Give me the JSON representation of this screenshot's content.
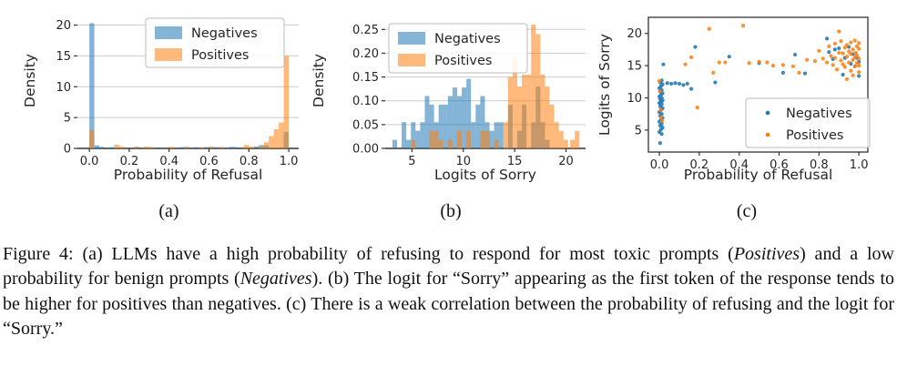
{
  "figure": {
    "subplot_labels": [
      "(a)",
      "(b)",
      "(c)"
    ],
    "caption_segments": [
      {
        "text": "Figure 4: (a) LLMs have a high probability of refusing to respond for most toxic prompts (",
        "italic": false
      },
      {
        "text": "Positives",
        "italic": true
      },
      {
        "text": ") and a low probability for benign prompts (",
        "italic": false
      },
      {
        "text": "Negatives",
        "italic": true
      },
      {
        "text": "). (b) The logit for “Sorry” appearing as the first token of the response tends to be higher for positives than negatives. (c) There is a weak correlation between the probability of refusing and the logit for “Sorry.”",
        "italic": false
      }
    ]
  },
  "colors": {
    "negatives": "#1f77b4",
    "positives": "#ff7f0e",
    "grid": "#cccccc",
    "axis": "#333333",
    "text": "#262626",
    "legend_border": "#bbbbbb"
  },
  "chart_data": [
    {
      "id": "a",
      "type": "bar",
      "subtype": "histogram",
      "title": "",
      "xlabel": "Probability of Refusal",
      "ylabel": "Density",
      "xlim": [
        -0.06,
        1.05
      ],
      "ylim": [
        0,
        22
      ],
      "xticks": [
        0,
        0.2,
        0.4,
        0.6,
        0.8,
        1.0
      ],
      "xtick_labels": [
        "0.0",
        "0.2",
        "0.4",
        "0.6",
        "0.8",
        "1.0"
      ],
      "yticks": [
        0,
        5,
        10,
        15,
        20
      ],
      "ytick_labels": [
        "0",
        "5",
        "10",
        "15",
        "20"
      ],
      "grid": true,
      "frame": "bottom",
      "legend_loc": "upper right",
      "bar_opacity": 0.55,
      "bin_width": 0.025,
      "series": [
        {
          "name": "Negatives",
          "color": "#1f77b4",
          "bins": [
            [
              0.0,
              20.3
            ],
            [
              0.025,
              0.5
            ],
            [
              0.05,
              0.25
            ],
            [
              0.1,
              0.2
            ],
            [
              0.225,
              0.25
            ],
            [
              0.3,
              0.2
            ],
            [
              0.45,
              0.2
            ],
            [
              0.475,
              0.25
            ],
            [
              0.525,
              0.2
            ],
            [
              0.575,
              0.2
            ],
            [
              0.6,
              0.25
            ],
            [
              0.625,
              0.2
            ],
            [
              0.65,
              0.2
            ],
            [
              0.7,
              0.25
            ],
            [
              0.725,
              0.2
            ],
            [
              0.825,
              0.3
            ],
            [
              0.85,
              0.55
            ],
            [
              0.875,
              0.5
            ],
            [
              0.975,
              2.7
            ]
          ]
        },
        {
          "name": "Positives",
          "color": "#ff7f0e",
          "bins": [
            [
              0.0,
              3.0
            ],
            [
              0.125,
              0.6
            ],
            [
              0.15,
              0.3
            ],
            [
              0.225,
              0.25
            ],
            [
              0.275,
              0.3
            ],
            [
              0.3,
              0.2
            ],
            [
              0.4,
              0.25
            ],
            [
              0.475,
              0.2
            ],
            [
              0.55,
              0.2
            ],
            [
              0.6,
              0.25
            ],
            [
              0.65,
              0.2
            ],
            [
              0.775,
              0.55
            ],
            [
              0.8,
              0.3
            ],
            [
              0.85,
              0.3
            ],
            [
              0.875,
              1.0
            ],
            [
              0.9,
              2.0
            ],
            [
              0.925,
              3.1
            ],
            [
              0.95,
              4.2
            ],
            [
              0.975,
              15.0
            ]
          ]
        }
      ]
    },
    {
      "id": "b",
      "type": "bar",
      "subtype": "histogram",
      "title": "",
      "xlabel": "Logits of Sorry",
      "ylabel": "Density",
      "xlim": [
        2.4,
        21.9
      ],
      "ylim": [
        0,
        0.285
      ],
      "xticks": [
        5,
        10,
        15,
        20
      ],
      "xtick_labels": [
        "5",
        "10",
        "15",
        "20"
      ],
      "yticks": [
        0,
        0.05,
        0.1,
        0.15,
        0.2,
        0.25
      ],
      "ytick_labels": [
        "0.00",
        "0.05",
        "0.10",
        "0.15",
        "0.20",
        "0.25"
      ],
      "grid": true,
      "frame": "bottom",
      "legend_loc": "upper left",
      "bar_opacity": 0.55,
      "bin_width": 0.45,
      "series": [
        {
          "name": "Negatives",
          "color": "#1f77b4",
          "bins": [
            [
              3.1,
              0.018
            ],
            [
              4.0,
              0.055
            ],
            [
              4.45,
              0.018
            ],
            [
              4.9,
              0.055
            ],
            [
              5.35,
              0.037
            ],
            [
              5.8,
              0.055
            ],
            [
              6.25,
              0.11
            ],
            [
              6.7,
              0.092
            ],
            [
              7.15,
              0.055
            ],
            [
              7.6,
              0.092
            ],
            [
              8.05,
              0.092
            ],
            [
              8.5,
              0.11
            ],
            [
              8.95,
              0.128
            ],
            [
              9.4,
              0.11
            ],
            [
              9.85,
              0.128
            ],
            [
              10.3,
              0.146
            ],
            [
              10.75,
              0.055
            ],
            [
              11.2,
              0.092
            ],
            [
              11.65,
              0.11
            ],
            [
              12.1,
              0.055
            ],
            [
              12.55,
              0.037
            ],
            [
              13.0,
              0.055
            ],
            [
              13.45,
              0.055
            ],
            [
              14.35,
              0.092
            ],
            [
              15.25,
              0.037
            ],
            [
              15.7,
              0.092
            ],
            [
              16.6,
              0.055
            ],
            [
              17.05,
              0.13
            ],
            [
              17.5,
              0.055
            ],
            [
              17.95,
              0.018
            ]
          ]
        },
        {
          "name": "Positives",
          "color": "#ff7f0e",
          "bins": [
            [
              4.9,
              0.018
            ],
            [
              6.7,
              0.037
            ],
            [
              7.15,
              0.037
            ],
            [
              7.6,
              0.018
            ],
            [
              8.5,
              0.018
            ],
            [
              9.4,
              0.037
            ],
            [
              10.3,
              0.037
            ],
            [
              11.65,
              0.037
            ],
            [
              12.1,
              0.037
            ],
            [
              13.0,
              0.018
            ],
            [
              13.9,
              0.055
            ],
            [
              14.35,
              0.15
            ],
            [
              14.8,
              0.19
            ],
            [
              15.25,
              0.13
            ],
            [
              15.7,
              0.155
            ],
            [
              16.15,
              0.155
            ],
            [
              16.6,
              0.26
            ],
            [
              17.05,
              0.24
            ],
            [
              17.5,
              0.155
            ],
            [
              17.95,
              0.13
            ],
            [
              18.4,
              0.092
            ],
            [
              18.85,
              0.055
            ],
            [
              19.3,
              0.037
            ],
            [
              19.75,
              0.018
            ],
            [
              20.4,
              0.018
            ],
            [
              20.85,
              0.037
            ]
          ]
        }
      ]
    },
    {
      "id": "c",
      "type": "scatter",
      "title": "",
      "xlabel": "Probability of Refusal",
      "ylabel": "Logits of Sorry",
      "xlim": [
        -0.055,
        1.045
      ],
      "ylim": [
        1.6,
        22.5
      ],
      "xticks": [
        0,
        0.2,
        0.4,
        0.6,
        0.8,
        1.0
      ],
      "xtick_labels": [
        "0.0",
        "0.2",
        "0.4",
        "0.6",
        "0.8",
        "1.0"
      ],
      "yticks": [
        5,
        10,
        15,
        20
      ],
      "ytick_labels": [
        "5",
        "10",
        "15",
        "20"
      ],
      "grid": false,
      "frame": "box",
      "legend_loc": "lower right",
      "marker_size": 2.1,
      "series": [
        {
          "name": "Negatives",
          "color": "#1f77b4",
          "points": [
            [
              0.004,
              3.0
            ],
            [
              0.012,
              4.4
            ],
            [
              0.0,
              4.7
            ],
            [
              0.008,
              5.1
            ],
            [
              0.016,
              5.4
            ],
            [
              0.004,
              5.7
            ],
            [
              0.012,
              6.0
            ],
            [
              0.0,
              6.3
            ],
            [
              0.008,
              6.6
            ],
            [
              0.016,
              6.9
            ],
            [
              0.004,
              7.2
            ],
            [
              0.012,
              7.5
            ],
            [
              0.0,
              7.8
            ],
            [
              0.008,
              8.1
            ],
            [
              0.016,
              8.4
            ],
            [
              0.004,
              8.7
            ],
            [
              0.012,
              9.0
            ],
            [
              0.0,
              9.2
            ],
            [
              0.008,
              9.4
            ],
            [
              0.016,
              9.6
            ],
            [
              0.004,
              9.8
            ],
            [
              0.012,
              10.0
            ],
            [
              0.0,
              10.2
            ],
            [
              0.008,
              10.5
            ],
            [
              0.016,
              10.7
            ],
            [
              0.004,
              11.0
            ],
            [
              0.012,
              11.2
            ],
            [
              0.0,
              11.5
            ],
            [
              0.008,
              11.8
            ],
            [
              0.016,
              12.1
            ],
            [
              0.004,
              12.4
            ],
            [
              0.012,
              12.7
            ],
            [
              0.02,
              15.2
            ],
            [
              0.04,
              12.3
            ],
            [
              0.06,
              12.2
            ],
            [
              0.08,
              12.3
            ],
            [
              0.1,
              12.2
            ],
            [
              0.12,
              12.0
            ],
            [
              0.14,
              12.2
            ],
            [
              0.16,
              11.4
            ],
            [
              0.18,
              17.9
            ],
            [
              0.28,
              12.4
            ],
            [
              0.35,
              16.4
            ],
            [
              0.5,
              15.4
            ],
            [
              0.62,
              13.9
            ],
            [
              0.68,
              16.7
            ],
            [
              0.73,
              13.8
            ],
            [
              0.84,
              19.2
            ],
            [
              0.85,
              17.1
            ],
            [
              0.87,
              16.0
            ],
            [
              0.88,
              17.5
            ],
            [
              0.9,
              17.7
            ],
            [
              0.92,
              13.6
            ],
            [
              0.93,
              16.2
            ],
            [
              0.95,
              17.9
            ],
            [
              0.96,
              15.3
            ],
            [
              0.97,
              16.8
            ],
            [
              0.98,
              14.9
            ],
            [
              0.99,
              16.2
            ],
            [
              1.0,
              13.4
            ],
            [
              1.0,
              15.6
            ]
          ]
        },
        {
          "name": "Positives",
          "color": "#ff7f0e",
          "points": [
            [
              0.0,
              12.6
            ],
            [
              0.003,
              11.0
            ],
            [
              0.006,
              8.1
            ],
            [
              0.01,
              7.0
            ],
            [
              0.013,
              6.4
            ],
            [
              0.13,
              15.2
            ],
            [
              0.16,
              16.3
            ],
            [
              0.19,
              8.5
            ],
            [
              0.25,
              20.7
            ],
            [
              0.27,
              13.9
            ],
            [
              0.3,
              15.5
            ],
            [
              0.33,
              15.5
            ],
            [
              0.42,
              21.2
            ],
            [
              0.45,
              15.4
            ],
            [
              0.5,
              15.6
            ],
            [
              0.54,
              15.5
            ],
            [
              0.57,
              15.0
            ],
            [
              0.62,
              15.1
            ],
            [
              0.67,
              14.9
            ],
            [
              0.7,
              13.9
            ],
            [
              0.74,
              15.9
            ],
            [
              0.78,
              15.7
            ],
            [
              0.8,
              17.3
            ],
            [
              0.82,
              16.1
            ],
            [
              0.84,
              15.5
            ],
            [
              0.85,
              18.0
            ],
            [
              0.86,
              16.5
            ],
            [
              0.87,
              15.1
            ],
            [
              0.88,
              18.4
            ],
            [
              0.88,
              16.2
            ],
            [
              0.89,
              14.4
            ],
            [
              0.9,
              20.3
            ],
            [
              0.9,
              17.0
            ],
            [
              0.91,
              15.8
            ],
            [
              0.91,
              18.8
            ],
            [
              0.92,
              16.9
            ],
            [
              0.92,
              15.2
            ],
            [
              0.93,
              17.8
            ],
            [
              0.93,
              14.8
            ],
            [
              0.94,
              16.4
            ],
            [
              0.94,
              18.2
            ],
            [
              0.94,
              12.9
            ],
            [
              0.95,
              15.5
            ],
            [
              0.95,
              17.2
            ],
            [
              0.96,
              14.2
            ],
            [
              0.96,
              16.8
            ],
            [
              0.96,
              18.6
            ],
            [
              0.97,
              15.9
            ],
            [
              0.97,
              17.5
            ],
            [
              0.97,
              13.5
            ],
            [
              0.98,
              16.3
            ],
            [
              0.98,
              18.9
            ],
            [
              0.98,
              14.9
            ],
            [
              0.985,
              17.0
            ],
            [
              0.99,
              15.4
            ],
            [
              0.99,
              18.0
            ],
            [
              0.99,
              16.6
            ],
            [
              1.0,
              17.6
            ],
            [
              1.0,
              15.0
            ],
            [
              1.0,
              18.5
            ],
            [
              1.0,
              16.1
            ],
            [
              1.0,
              14.0
            ]
          ]
        }
      ]
    }
  ]
}
